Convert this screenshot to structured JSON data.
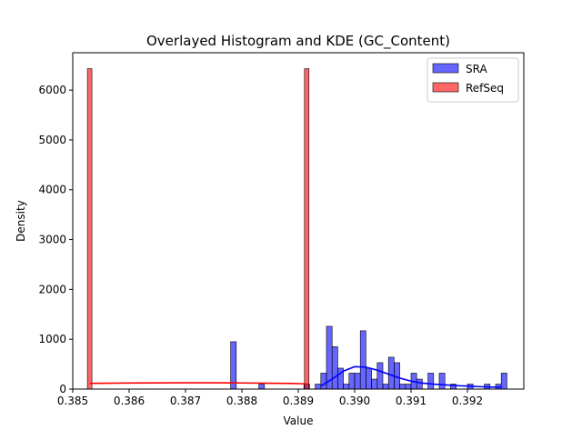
{
  "chart_data": {
    "type": "histogram",
    "title": "Overlayed Histogram and KDE (GC_Content)",
    "xlabel": "Value",
    "ylabel": "Density",
    "xlim": [
      0.385,
      0.393
    ],
    "ylim": [
      0,
      6750
    ],
    "xticks": [
      0.385,
      0.386,
      0.387,
      0.388,
      0.389,
      0.39,
      0.391,
      0.392
    ],
    "xtick_labels": [
      "0.385",
      "0.386",
      "0.387",
      "0.388",
      "0.389",
      "0.390",
      "0.391",
      "0.392"
    ],
    "yticks": [
      0,
      1000,
      2000,
      3000,
      4000,
      5000,
      6000
    ],
    "ytick_labels": [
      "0",
      "1000",
      "2000",
      "3000",
      "4000",
      "5000",
      "6000"
    ],
    "grid": false,
    "legend_position": "upper right",
    "series": [
      {
        "name": "SRA",
        "color": "#0000ff",
        "bin_width": 0.0001,
        "bars": [
          {
            "x": 0.38785,
            "h": 950
          },
          {
            "x": 0.38835,
            "h": 100
          },
          {
            "x": 0.38915,
            "h": 100
          },
          {
            "x": 0.38935,
            "h": 100
          },
          {
            "x": 0.38945,
            "h": 320
          },
          {
            "x": 0.38955,
            "h": 1260
          },
          {
            "x": 0.38965,
            "h": 850
          },
          {
            "x": 0.38975,
            "h": 420
          },
          {
            "x": 0.38985,
            "h": 100
          },
          {
            "x": 0.38995,
            "h": 320
          },
          {
            "x": 0.39005,
            "h": 320
          },
          {
            "x": 0.39015,
            "h": 1170
          },
          {
            "x": 0.39025,
            "h": 420
          },
          {
            "x": 0.39035,
            "h": 200
          },
          {
            "x": 0.39045,
            "h": 530
          },
          {
            "x": 0.39055,
            "h": 100
          },
          {
            "x": 0.39065,
            "h": 640
          },
          {
            "x": 0.39075,
            "h": 530
          },
          {
            "x": 0.39085,
            "h": 100
          },
          {
            "x": 0.39095,
            "h": 100
          },
          {
            "x": 0.39105,
            "h": 320
          },
          {
            "x": 0.39115,
            "h": 200
          },
          {
            "x": 0.39135,
            "h": 320
          },
          {
            "x": 0.39155,
            "h": 320
          },
          {
            "x": 0.39175,
            "h": 100
          },
          {
            "x": 0.39205,
            "h": 100
          },
          {
            "x": 0.39235,
            "h": 100
          },
          {
            "x": 0.39255,
            "h": 100
          },
          {
            "x": 0.39265,
            "h": 320
          }
        ],
        "kde": [
          [
            0.3894,
            60
          ],
          [
            0.3896,
            200
          ],
          [
            0.3898,
            360
          ],
          [
            0.39,
            450
          ],
          [
            0.3902,
            440
          ],
          [
            0.3904,
            380
          ],
          [
            0.3906,
            300
          ],
          [
            0.3908,
            220
          ],
          [
            0.391,
            160
          ],
          [
            0.3912,
            120
          ],
          [
            0.3914,
            100
          ],
          [
            0.3916,
            85
          ],
          [
            0.3918,
            70
          ],
          [
            0.392,
            60
          ],
          [
            0.3922,
            50
          ],
          [
            0.3924,
            40
          ],
          [
            0.3926,
            40
          ]
        ]
      },
      {
        "name": "RefSeq",
        "color": "#ff0000",
        "bin_width": 8e-05,
        "bars": [
          {
            "x": 0.3853,
            "h": 6430
          },
          {
            "x": 0.38915,
            "h": 6430
          }
        ],
        "kde": [
          [
            0.3853,
            115
          ],
          [
            0.3856,
            118
          ],
          [
            0.386,
            122
          ],
          [
            0.3865,
            125
          ],
          [
            0.387,
            127
          ],
          [
            0.3875,
            126
          ],
          [
            0.388,
            123
          ],
          [
            0.3885,
            118
          ],
          [
            0.3889,
            112
          ],
          [
            0.38915,
            105
          ]
        ]
      }
    ]
  }
}
